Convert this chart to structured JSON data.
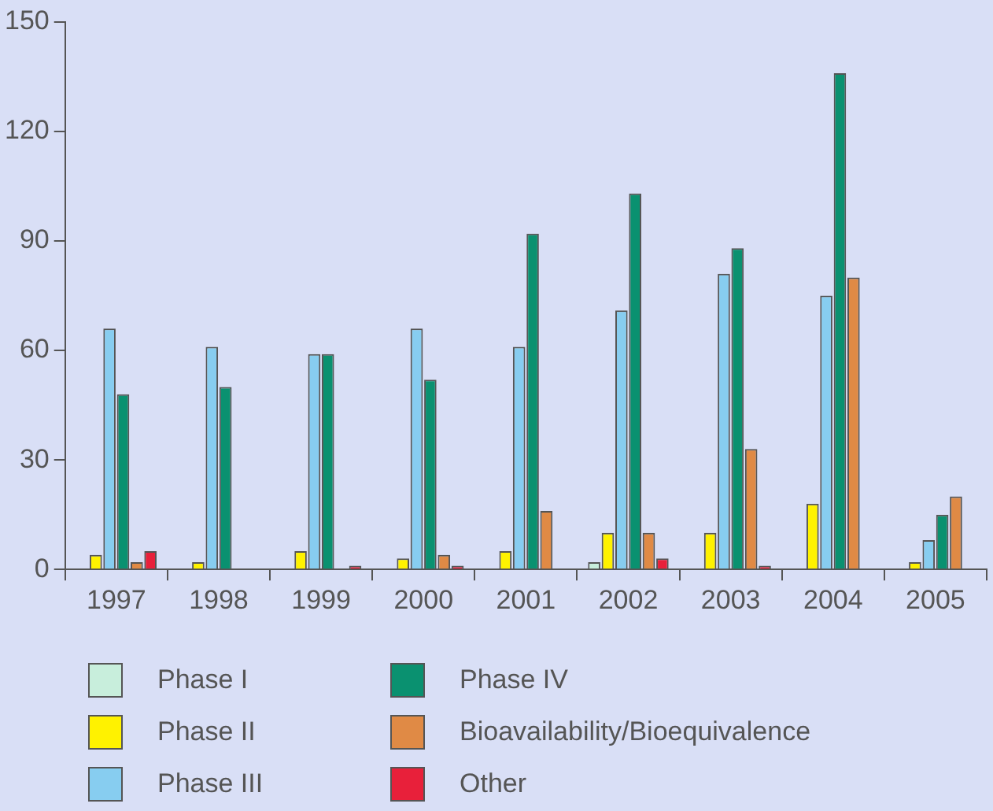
{
  "chart_data": {
    "type": "bar",
    "categories": [
      "1997",
      "1998",
      "1999",
      "2000",
      "2001",
      "2002",
      "2003",
      "2004",
      "2005"
    ],
    "series": [
      {
        "name": "Phase I",
        "color": "#c8eedc",
        "values": [
          0,
          0,
          0,
          0,
          0,
          2,
          0,
          0,
          0
        ]
      },
      {
        "name": "Phase II",
        "color": "#fff200",
        "values": [
          4,
          2,
          5,
          3,
          5,
          10,
          10,
          18,
          2
        ]
      },
      {
        "name": "Phase III",
        "color": "#87cdf0",
        "values": [
          66,
          61,
          59,
          66,
          61,
          71,
          81,
          75,
          8
        ]
      },
      {
        "name": "Phase IV",
        "color": "#0a9170",
        "values": [
          48,
          50,
          59,
          52,
          92,
          103,
          88,
          136,
          15
        ]
      },
      {
        "name": "Bioavailability/Bioequivalence",
        "color": "#e08a45",
        "values": [
          2,
          0,
          0,
          4,
          16,
          10,
          33,
          80,
          20
        ]
      },
      {
        "name": "Other",
        "color": "#e8203a",
        "values": [
          5,
          0,
          1,
          1,
          0,
          3,
          1,
          0,
          0
        ]
      }
    ],
    "ylim": [
      0,
      150
    ],
    "yticks": [
      0,
      30,
      60,
      90,
      120,
      150
    ],
    "grid": false,
    "legend": "bottom"
  }
}
